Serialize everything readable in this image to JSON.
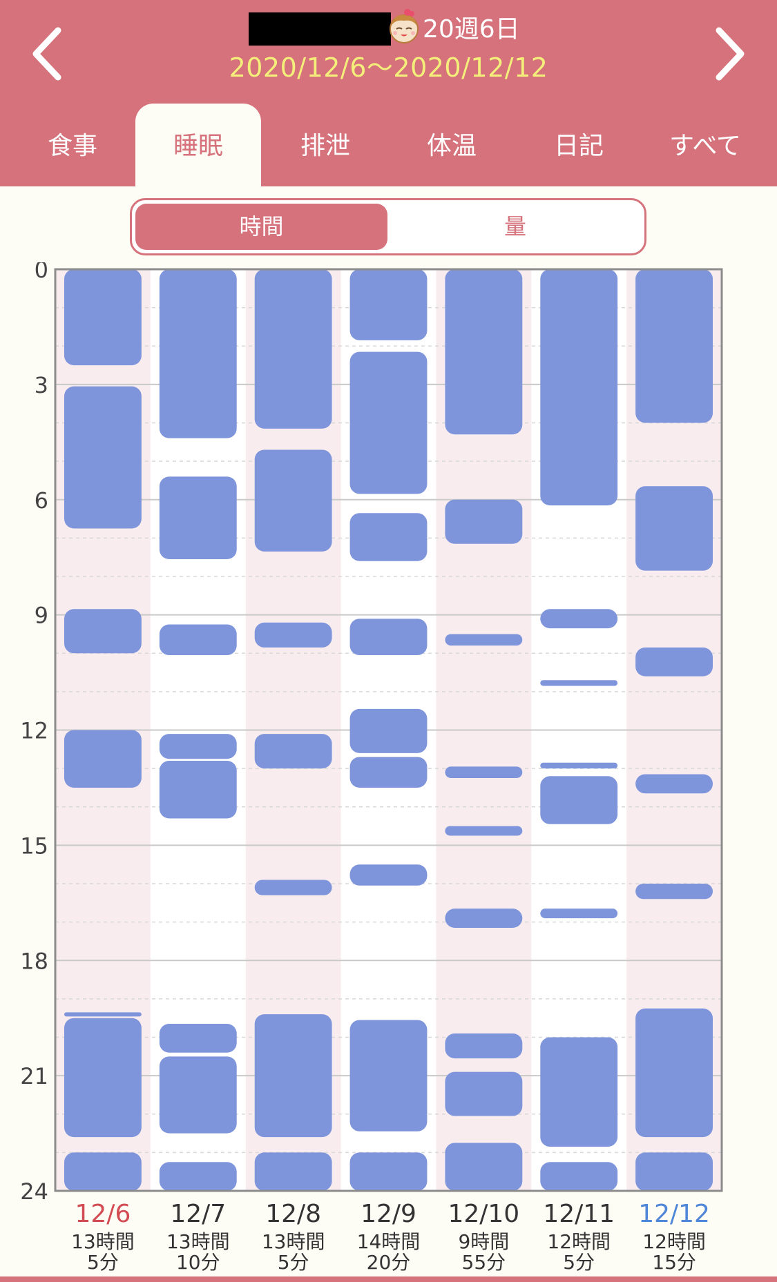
{
  "header": {
    "age": "20週6日",
    "date_range": "2020/12/6〜2020/12/12",
    "prev_label": "前の週",
    "next_label": "次の週"
  },
  "tabs": [
    "食事",
    "睡眠",
    "排泄",
    "体温",
    "日記",
    "すべて"
  ],
  "active_tab": 1,
  "toggle": {
    "time": "時間",
    "amount": "量",
    "selected": "時間"
  },
  "colors": {
    "header_bg": "#d5727b",
    "date_text": "#f4ef7a",
    "sleep_bar": "#7f95db",
    "shaded_column": "#f8ecee",
    "sunday_label": "#d24a52",
    "saturday_label": "#4f86d8"
  },
  "chart_data": {
    "type": "timeline",
    "y_unit": "hour of day",
    "ylim": [
      0,
      24
    ],
    "y_ticks": [
      "0",
      "3",
      "6",
      "9",
      "12",
      "15",
      "18",
      "21",
      "24"
    ],
    "grid": true,
    "days": [
      {
        "date": "12/6",
        "total_hours": "13時間",
        "total_minutes": "5分",
        "label_color": "sunday",
        "shaded": true,
        "sleeps": [
          [
            0,
            2.5
          ],
          [
            3.05,
            6.75
          ],
          [
            8.85,
            10.0
          ],
          [
            12.0,
            13.5
          ],
          [
            19.35,
            19.42
          ],
          [
            19.5,
            22.6
          ],
          [
            23.0,
            24
          ]
        ]
      },
      {
        "date": "12/7",
        "total_hours": "13時間",
        "total_minutes": "10分",
        "label_color": "default",
        "shaded": false,
        "sleeps": [
          [
            0,
            4.4
          ],
          [
            5.4,
            7.55
          ],
          [
            9.25,
            10.05
          ],
          [
            12.1,
            12.75
          ],
          [
            12.8,
            14.3
          ],
          [
            19.65,
            20.4
          ],
          [
            20.5,
            22.5
          ],
          [
            23.25,
            24
          ]
        ]
      },
      {
        "date": "12/8",
        "total_hours": "13時間",
        "total_minutes": "5分",
        "label_color": "default",
        "shaded": true,
        "sleeps": [
          [
            0,
            4.15
          ],
          [
            4.7,
            7.35
          ],
          [
            9.2,
            9.85
          ],
          [
            12.1,
            13.0
          ],
          [
            15.9,
            16.3
          ],
          [
            19.4,
            22.6
          ],
          [
            23.0,
            24
          ]
        ]
      },
      {
        "date": "12/9",
        "total_hours": "14時間",
        "total_minutes": "20分",
        "label_color": "default",
        "shaded": false,
        "sleeps": [
          [
            0,
            1.85
          ],
          [
            2.15,
            5.85
          ],
          [
            6.35,
            7.6
          ],
          [
            9.1,
            10.05
          ],
          [
            11.45,
            12.6
          ],
          [
            12.7,
            13.5
          ],
          [
            15.5,
            16.05
          ],
          [
            19.55,
            22.45
          ],
          [
            23.0,
            24
          ]
        ]
      },
      {
        "date": "12/10",
        "total_hours": "9時間",
        "total_minutes": "55分",
        "label_color": "default",
        "shaded": true,
        "sleeps": [
          [
            0,
            4.3
          ],
          [
            6.0,
            7.15
          ],
          [
            9.5,
            9.8
          ],
          [
            12.95,
            13.25
          ],
          [
            14.5,
            14.75
          ],
          [
            16.65,
            17.15
          ],
          [
            19.9,
            20.55
          ],
          [
            20.9,
            22.05
          ],
          [
            22.75,
            24
          ]
        ]
      },
      {
        "date": "12/11",
        "total_hours": "12時間",
        "total_minutes": "5分",
        "label_color": "default",
        "shaded": false,
        "sleeps": [
          [
            0,
            6.15
          ],
          [
            8.85,
            9.35
          ],
          [
            10.7,
            10.85
          ],
          [
            12.85,
            13.0
          ],
          [
            13.2,
            14.45
          ],
          [
            16.65,
            16.9
          ],
          [
            20.0,
            22.85
          ],
          [
            23.25,
            24
          ]
        ]
      },
      {
        "date": "12/12",
        "total_hours": "12時間",
        "total_minutes": "15分",
        "label_color": "saturday",
        "shaded": true,
        "sleeps": [
          [
            0,
            4.0
          ],
          [
            5.65,
            7.85
          ],
          [
            9.85,
            10.6
          ],
          [
            13.15,
            13.65
          ],
          [
            16.0,
            16.4
          ],
          [
            19.25,
            22.6
          ],
          [
            23.0,
            24
          ]
        ]
      }
    ]
  }
}
